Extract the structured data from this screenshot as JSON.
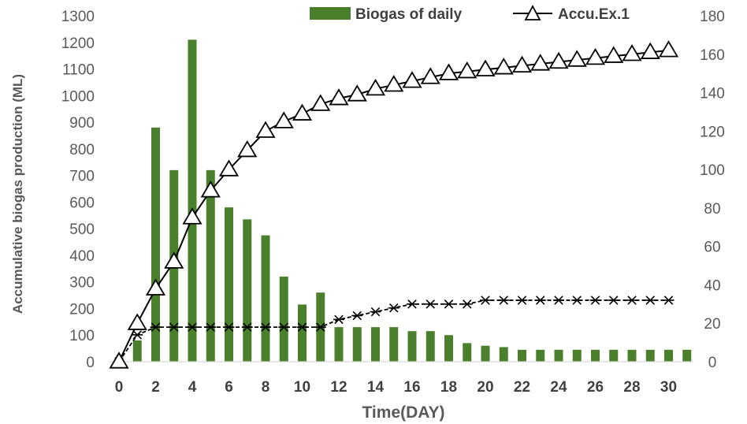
{
  "chart_data": {
    "type": "bar+line",
    "xlabel": "Time(DAY)",
    "ylabel": "Accumulative biogas production (ML)",
    "y2label": "",
    "xlim": [
      0,
      30
    ],
    "ylim": [
      0,
      1300
    ],
    "y2lim": [
      0,
      180
    ],
    "x_ticks": [
      0,
      2,
      4,
      6,
      8,
      10,
      12,
      14,
      16,
      18,
      20,
      22,
      24,
      26,
      28,
      30
    ],
    "y_ticks": [
      0,
      100,
      200,
      300,
      400,
      500,
      600,
      700,
      800,
      900,
      1000,
      1100,
      1200,
      1300
    ],
    "y2_ticks": [
      0,
      20,
      40,
      60,
      80,
      100,
      120,
      140,
      160,
      180
    ],
    "legend_position": "top",
    "colors": {
      "bars": "#4a7f2c",
      "line": "#000000",
      "axis": "#d9d9d9"
    },
    "series": [
      {
        "name": "Biogas of daily",
        "kind": "bar",
        "axis": "left",
        "x": [
          1,
          2,
          3,
          4,
          5,
          6,
          7,
          8,
          9,
          10,
          11,
          12,
          13,
          14,
          15,
          16,
          17,
          18,
          19,
          20,
          21,
          22,
          23,
          24,
          25,
          26,
          27,
          28,
          29,
          30,
          31
        ],
        "values": [
          80,
          880,
          720,
          1210,
          720,
          580,
          535,
          475,
          320,
          215,
          260,
          130,
          130,
          130,
          130,
          115,
          115,
          100,
          70,
          60,
          55,
          45,
          45,
          45,
          45,
          45,
          45,
          45,
          45,
          45,
          45
        ]
      },
      {
        "name": "Accu.Ex.1",
        "kind": "line",
        "marker": "triangle",
        "axis": "right",
        "x": [
          0,
          1,
          2,
          3,
          4,
          5,
          6,
          7,
          8,
          9,
          10,
          11,
          12,
          13,
          14,
          15,
          16,
          17,
          18,
          19,
          20,
          21,
          22,
          23,
          24,
          25,
          26,
          27,
          28,
          29,
          30
        ],
        "values": [
          0,
          20,
          38,
          52,
          75,
          89,
          100,
          110,
          120,
          125,
          129,
          134,
          137,
          139,
          142,
          144,
          146,
          148,
          150,
          151,
          152,
          153,
          154,
          155,
          156,
          157,
          158,
          159,
          160,
          161,
          162
        ]
      },
      {
        "name": "",
        "kind": "line",
        "marker": "asterisk",
        "dashed": true,
        "axis": "right",
        "x": [
          0,
          1,
          2,
          3,
          4,
          5,
          6,
          7,
          8,
          9,
          10,
          11,
          12,
          13,
          14,
          15,
          16,
          17,
          18,
          19,
          20,
          21,
          22,
          23,
          24,
          25,
          26,
          27,
          28,
          29,
          30
        ],
        "values": [
          0,
          14,
          18,
          18,
          18,
          18,
          18,
          18,
          18,
          18,
          18,
          18,
          22,
          24,
          26,
          28,
          30,
          30,
          30,
          30,
          32,
          32,
          32,
          32,
          32,
          32,
          32,
          32,
          32,
          32,
          32
        ]
      }
    ]
  }
}
